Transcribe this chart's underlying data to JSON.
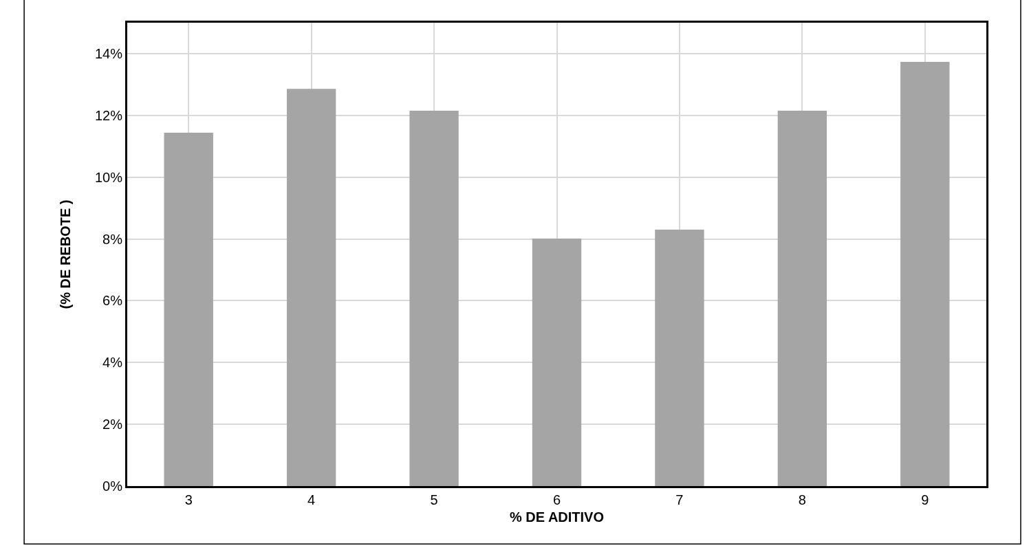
{
  "chart_data": {
    "type": "bar",
    "xlabel": "% DE ADITIVO",
    "ylabel": "(% DE REBOTE )",
    "categories": [
      "3",
      "4",
      "5",
      "6",
      "7",
      "8",
      "9"
    ],
    "values": [
      11.44,
      12.86,
      12.15,
      8.01,
      8.3,
      12.15,
      13.73
    ],
    "color": "#a5a5a5",
    "ylim": [
      0,
      15
    ],
    "yticks": [
      {
        "value": 0,
        "label": "0%"
      },
      {
        "value": 2,
        "label": "2%"
      },
      {
        "value": 4,
        "label": "4%"
      },
      {
        "value": 6,
        "label": "6%"
      },
      {
        "value": 8,
        "label": "8%"
      },
      {
        "value": 10,
        "label": "10%"
      },
      {
        "value": 12,
        "label": "12%"
      },
      {
        "value": 14,
        "label": "14%"
      }
    ],
    "grid": true
  }
}
